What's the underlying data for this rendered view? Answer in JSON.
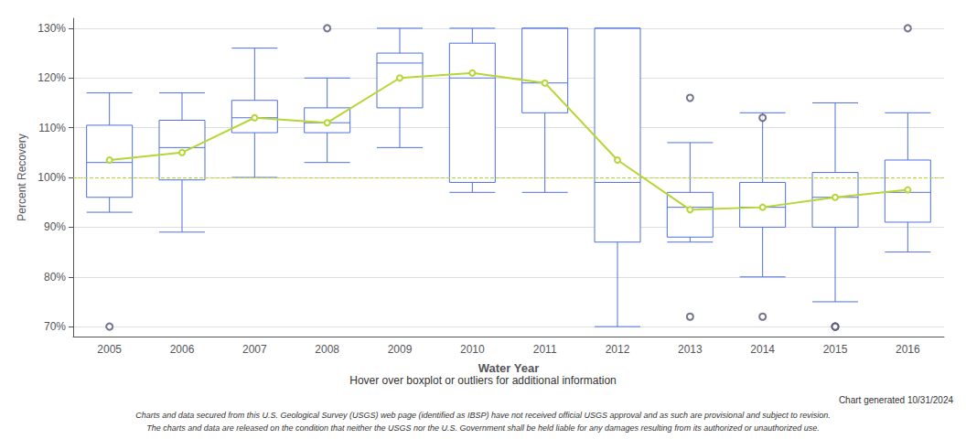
{
  "chart_data": {
    "type": "boxplot",
    "xlabel": "Water Year",
    "ylabel": "Percent Recovery",
    "annotations": [
      "Hover over boxplot or outliers for additional information",
      "Chart generated 10/31/2024",
      "Charts and data secured from this U.S. Geological Survey (USGS) web page (identified as IBSP) have not received official USGS approval and as such are provisional and subject to revision.",
      "The charts and data are released on the condition that neither the USGS nor the U.S. Government shall be held liable for any damages resulting from its authorized or unauthorized use."
    ],
    "categories": [
      "2005",
      "2006",
      "2007",
      "2008",
      "2009",
      "2010",
      "2011",
      "2012",
      "2013",
      "2014",
      "2015",
      "2016"
    ],
    "boxes": [
      {
        "whislo": 93,
        "q1": 96,
        "median": 103,
        "q3": 110.5,
        "whishi": 117,
        "mean": 103.5,
        "fliers": [
          70
        ]
      },
      {
        "whislo": 89,
        "q1": 99.5,
        "median": 106,
        "q3": 111.5,
        "whishi": 117,
        "mean": 105,
        "fliers": []
      },
      {
        "whislo": 100,
        "q1": 109,
        "median": 112,
        "q3": 115.5,
        "whishi": 126,
        "mean": 112,
        "fliers": []
      },
      {
        "whislo": 103,
        "q1": 109,
        "median": 111,
        "q3": 114,
        "whishi": 120,
        "mean": 111,
        "fliers": [
          130
        ]
      },
      {
        "whislo": 106,
        "q1": 114,
        "median": 123,
        "q3": 125,
        "whishi": 130,
        "mean": 120,
        "fliers": []
      },
      {
        "whislo": 97,
        "q1": 99,
        "median": 120,
        "q3": 127,
        "whishi": 130,
        "mean": 121,
        "fliers": []
      },
      {
        "whislo": 97,
        "q1": 113,
        "median": 119,
        "q3": 130,
        "whishi": 130,
        "mean": 119,
        "fliers": []
      },
      {
        "whislo": 70,
        "q1": 87,
        "median": 99,
        "q3": 130,
        "whishi": 130,
        "mean": 103.5,
        "fliers": []
      },
      {
        "whislo": 87,
        "q1": 88,
        "median": 94,
        "q3": 97,
        "whishi": 107,
        "mean": 93.5,
        "fliers": [
          72,
          116
        ]
      },
      {
        "whislo": 80,
        "q1": 90,
        "median": 94,
        "q3": 99,
        "whishi": 113,
        "mean": 94,
        "fliers": [
          72,
          112
        ]
      },
      {
        "whislo": 75,
        "q1": 90,
        "median": 96,
        "q3": 101,
        "whishi": 115,
        "mean": 96,
        "fliers": [
          70,
          70,
          70
        ]
      },
      {
        "whislo": 85,
        "q1": 91,
        "median": 97,
        "q3": 103.5,
        "whishi": 113,
        "mean": 97.5,
        "fliers": [
          130
        ]
      }
    ],
    "mean_line": [
      103.5,
      105,
      112,
      111,
      120,
      121,
      119,
      103.5,
      93.5,
      94,
      96,
      97.5
    ],
    "reference_line": 100,
    "ylim": [
      68,
      132
    ],
    "yticks": [
      {
        "value": 70,
        "label": "70%"
      },
      {
        "value": 80,
        "label": "80%"
      },
      {
        "value": 90,
        "label": "90%"
      },
      {
        "value": 100,
        "label": "100%"
      },
      {
        "value": 110,
        "label": "110%"
      },
      {
        "value": 120,
        "label": "120%"
      },
      {
        "value": 130,
        "label": "130%"
      }
    ],
    "grid": true
  }
}
